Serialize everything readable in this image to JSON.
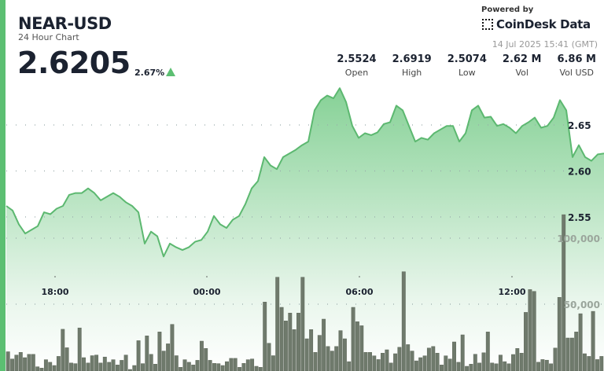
{
  "header": {
    "symbol": "NEAR-USD",
    "subtitle": "24 Hour Chart",
    "price": "2.6205",
    "change": "2.67%",
    "change_direction": "up",
    "powered_by": "Powered by",
    "brand": "CoinDesk Data",
    "timestamp": "14 Jul 2025 15:41 (GMT)"
  },
  "stats": [
    {
      "value": "2.5524",
      "label": "Open"
    },
    {
      "value": "2.6919",
      "label": "High"
    },
    {
      "value": "2.5074",
      "label": "Low"
    },
    {
      "value": "2.62 M",
      "label": "Vol"
    },
    {
      "value": "6.86 M",
      "label": "Vol USD"
    }
  ],
  "colors": {
    "accent": "#5cbf72",
    "line": "#5cb870",
    "volume_bar": "#6f7a6c",
    "fill_top": "#86d196"
  },
  "chart_data": {
    "type": "line",
    "title": "",
    "x_ticks": [
      "18:00",
      "00:00",
      "06:00",
      "12:00"
    ],
    "price_axis": {
      "ticks": [
        "2.55",
        "2.60",
        "2.65"
      ],
      "tick_values": [
        2.55,
        2.6,
        2.65
      ],
      "position": "right"
    },
    "volume_axis": {
      "ticks": [
        "50,000",
        "100,000"
      ],
      "tick_values": [
        50000,
        100000
      ]
    },
    "grid": "dotted horizontal",
    "price_series": [
      2.562,
      2.557,
      2.542,
      2.532,
      2.536,
      2.54,
      2.555,
      2.553,
      2.559,
      2.562,
      2.574,
      2.576,
      2.576,
      2.581,
      2.576,
      2.568,
      2.572,
      2.576,
      2.572,
      2.566,
      2.562,
      2.555,
      2.521,
      2.534,
      2.529,
      2.507,
      2.521,
      2.517,
      2.514,
      2.517,
      2.523,
      2.525,
      2.534,
      2.551,
      2.542,
      2.538,
      2.547,
      2.551,
      2.564,
      2.581,
      2.589,
      2.615,
      2.606,
      2.602,
      2.615,
      2.619,
      2.623,
      2.628,
      2.632,
      2.666,
      2.677,
      2.682,
      2.679,
      2.69,
      2.675,
      2.649,
      2.636,
      2.641,
      2.639,
      2.642,
      2.651,
      2.653,
      2.671,
      2.666,
      2.649,
      2.632,
      2.636,
      2.634,
      2.641,
      2.645,
      2.649,
      2.649,
      2.632,
      2.641,
      2.666,
      2.671,
      2.658,
      2.659,
      2.649,
      2.651,
      2.647,
      2.641,
      2.649,
      2.653,
      2.658,
      2.647,
      2.649,
      2.658,
      2.677,
      2.666,
      2.615,
      2.628,
      2.615,
      2.611,
      2.618,
      2.619
    ],
    "volume_series": [
      14000,
      8500,
      11500,
      13500,
      9500,
      12000,
      12000,
      2600,
      1600,
      8000,
      6000,
      3600,
      10500,
      31000,
      17000,
      5500,
      5000,
      32000,
      9500,
      5500,
      11000,
      11500,
      5500,
      10000,
      6000,
      8000,
      4000,
      7500,
      11500,
      600,
      3600,
      22400,
      5000,
      26000,
      12000,
      4600,
      29000,
      14500,
      20000,
      34700,
      11000,
      2200,
      8000,
      6000,
      4000,
      7500,
      22000,
      16500,
      7500,
      5200,
      5000,
      3600,
      6500,
      9000,
      9000,
      2200,
      5200,
      8000,
      8500,
      3000,
      2200,
      51600,
      20400,
      11000,
      70400,
      47600,
      37300,
      43300,
      30800,
      43300,
      70400,
      23800,
      30800,
      13500,
      26400,
      38700,
      18000,
      14500,
      18000,
      30000,
      23800,
      6500,
      47600,
      36700,
      33700,
      13500,
      13500,
      10900,
      8100,
      12900,
      15500,
      5500,
      12500,
      17400,
      74600,
      19400,
      14500,
      7100,
      9500,
      10900,
      16800,
      18000,
      12900,
      4000,
      10900,
      8500,
      21400,
      6000,
      26800,
      3000,
      4600,
      12100,
      5500,
      13200,
      29000,
      5500,
      4900,
      11500,
      6500,
      4900,
      11900,
      16500,
      12900,
      43800,
      61100,
      59700,
      6100,
      8100,
      7600,
      4900,
      16800,
      55200,
      117800,
      24400,
      24400,
      29000,
      42800,
      12500,
      10500,
      44600,
      8100,
      10500
    ]
  }
}
